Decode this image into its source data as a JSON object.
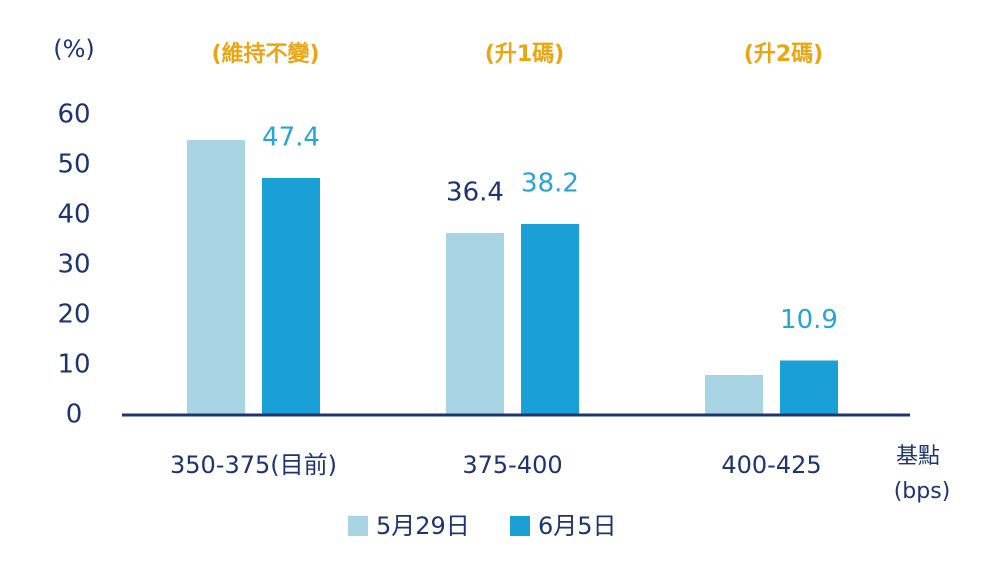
{
  "chart_data": {
    "type": "bar",
    "ylabel": "(%)",
    "xlabel": [
      "基點",
      "(bps)"
    ],
    "categories": [
      "350-375(目前)",
      "375-400",
      "400-425"
    ],
    "annotations": [
      "(維持不變)",
      "(升1碼)",
      "(升2碼)"
    ],
    "annotation_color": "#eba511",
    "series": [
      {
        "name": "5月29日",
        "color": "#a9d4e3",
        "label_color": "#1e3470",
        "values": [
          55,
          36.4,
          8
        ],
        "value_labels": [
          null,
          "36.4",
          null
        ]
      },
      {
        "name": "6月5日",
        "color": "#1aa0d6",
        "label_color": "#2aa3d5",
        "values": [
          47.4,
          38.2,
          10.9
        ],
        "value_labels": [
          "47.4",
          "38.2",
          "10.9"
        ]
      }
    ],
    "ylim": [
      0,
      60
    ],
    "yticks": [
      0,
      10,
      20,
      30,
      40,
      50,
      60
    ],
    "grid": false,
    "legend": "bottom"
  }
}
